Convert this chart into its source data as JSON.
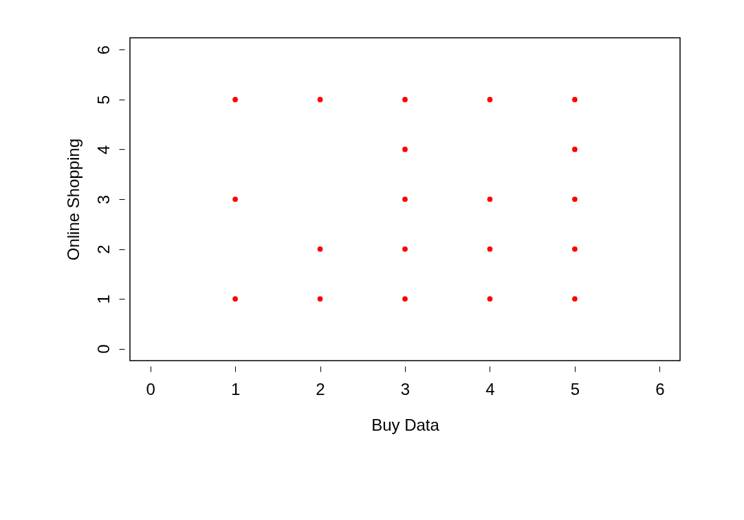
{
  "chart_data": {
    "type": "scatter",
    "xlabel": "Buy Data",
    "ylabel": "Online Shopping",
    "series": [
      {
        "color": "#ff0000",
        "x": [
          1,
          1,
          1,
          2,
          2,
          2,
          3,
          3,
          3,
          3,
          3,
          4,
          4,
          4,
          4,
          5,
          5,
          5,
          5,
          5
        ],
        "values": [
          5,
          3,
          1,
          5,
          2,
          1,
          5,
          4,
          3,
          2,
          1,
          5,
          3,
          2,
          1,
          5,
          4,
          3,
          2,
          1
        ]
      }
    ],
    "xlim": [
      -0.24,
      6.24
    ],
    "ylim": [
      -0.24,
      6.24
    ],
    "xticks": [
      0,
      1,
      2,
      3,
      4,
      5,
      6
    ],
    "yticks": [
      0,
      1,
      2,
      3,
      4,
      5,
      6
    ],
    "grid": false,
    "legend": false,
    "marker": "circle"
  }
}
